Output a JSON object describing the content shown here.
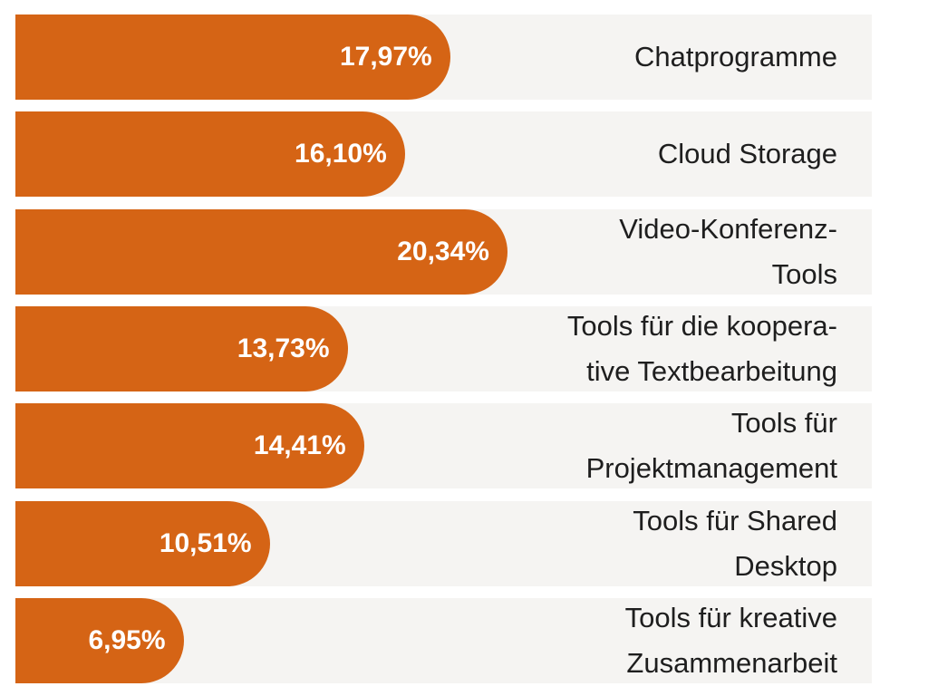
{
  "chart_data": {
    "type": "bar",
    "orientation": "horizontal",
    "color": "#d56415",
    "categories": [
      "Chatprogramme",
      "Cloud Storage",
      "Video-Konferenz-\nTools",
      "Tools für die koopera-\ntive Textbearbeitung",
      "Tools für\nProjektmanagement",
      "Tools für Shared\nDesktop",
      "Tools für kreative\nZusammenarbeit"
    ],
    "values": [
      17.97,
      16.1,
      20.34,
      13.73,
      14.41,
      10.51,
      6.95
    ],
    "value_labels": [
      "17,97%",
      "16,10%",
      "20,34%",
      "13,73%",
      "14,41%",
      "10,51%",
      "6,95%"
    ],
    "xlim": [
      0,
      35.4
    ]
  }
}
